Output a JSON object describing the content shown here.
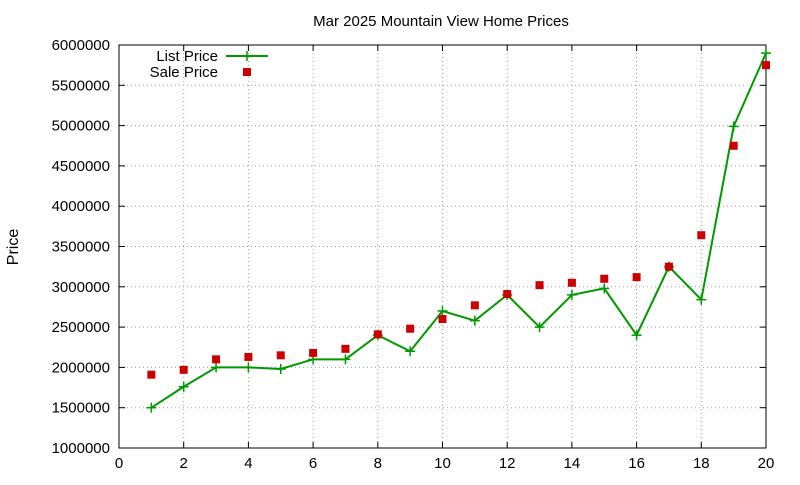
{
  "chart_data": {
    "type": "line",
    "title": "Mar 2025 Mountain View Home Prices",
    "xlabel": "",
    "ylabel": "Price",
    "xlim": [
      0,
      20
    ],
    "ylim": [
      1000000,
      6000000
    ],
    "x_ticks": [
      0,
      2,
      4,
      6,
      8,
      10,
      12,
      14,
      16,
      18,
      20
    ],
    "y_ticks": [
      1000000,
      1500000,
      2000000,
      2500000,
      3000000,
      3500000,
      4000000,
      4500000,
      5000000,
      5500000,
      6000000
    ],
    "grid": true,
    "grid_style": "dotted",
    "legend_position": "top-left",
    "series": [
      {
        "name": "List Price",
        "style": "line-with-plus-markers",
        "color": "#009900",
        "x": [
          1,
          2,
          3,
          4,
          5,
          6,
          7,
          8,
          9,
          10,
          11,
          12,
          13,
          14,
          15,
          16,
          17,
          18,
          19,
          20
        ],
        "values": [
          1500000,
          1760000,
          2000000,
          2000000,
          1980000,
          2100000,
          2100000,
          2400000,
          2200000,
          2700000,
          2580000,
          2900000,
          2500000,
          2900000,
          2980000,
          2400000,
          3250000,
          2840000,
          4990000,
          5900000
        ]
      },
      {
        "name": "Sale Price",
        "style": "square-markers",
        "color": "#cc0000",
        "x": [
          1,
          2,
          3,
          4,
          5,
          6,
          7,
          8,
          9,
          10,
          11,
          12,
          13,
          14,
          15,
          16,
          17,
          18,
          19,
          20
        ],
        "values": [
          1910000,
          1970000,
          2100000,
          2130000,
          2150000,
          2180000,
          2230000,
          2410000,
          2480000,
          2600000,
          2770000,
          2910000,
          3020000,
          3050000,
          3100000,
          3120000,
          3250000,
          3640000,
          4750000,
          5750000
        ]
      }
    ]
  }
}
